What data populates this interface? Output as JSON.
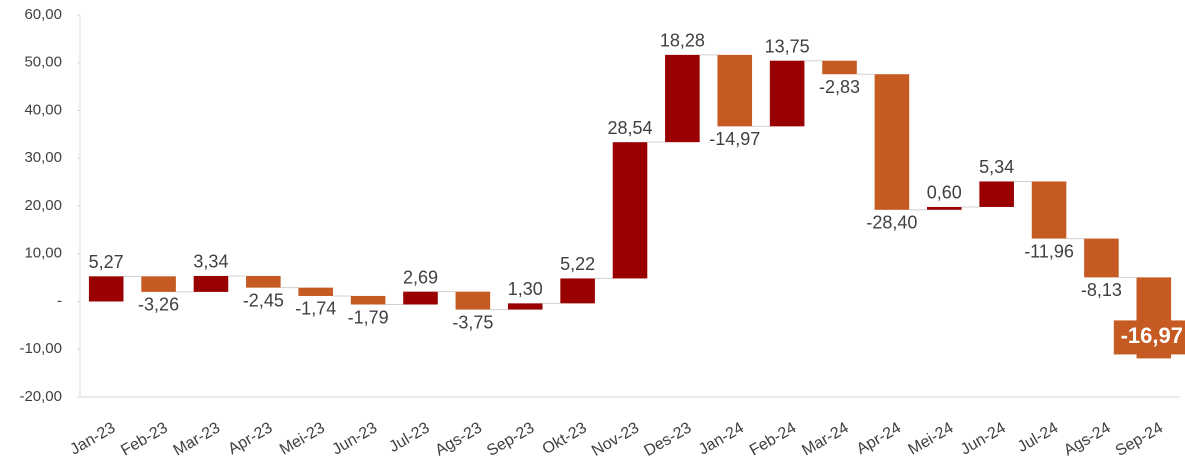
{
  "chart_data": {
    "type": "waterfall",
    "categories": [
      "Jan-23",
      "Feb-23",
      "Mar-23",
      "Apr-23",
      "Mei-23",
      "Jun-23",
      "Jul-23",
      "Ags-23",
      "Sep-23",
      "Okt-23",
      "Nov-23",
      "Des-23",
      "Jan-24",
      "Feb-24",
      "Mar-24",
      "Apr-24",
      "Mei-24",
      "Jun-24",
      "Jul-24",
      "Ags-24",
      "Sep-24"
    ],
    "values": [
      5.27,
      -3.26,
      3.34,
      -2.45,
      -1.74,
      -1.79,
      2.69,
      -3.75,
      1.3,
      5.22,
      28.54,
      18.28,
      -14.97,
      13.75,
      -2.83,
      -28.4,
      0.6,
      5.34,
      -11.96,
      -8.13,
      -16.97
    ],
    "value_labels": [
      "5,27",
      "-3,26",
      "3,34",
      "-2,45",
      "-1,74",
      "-1,79",
      "2,69",
      "-3,75",
      "1,30",
      "5,22",
      "28,54",
      "18,28",
      "-14,97",
      "13,75",
      "-2,83",
      "-28,40",
      "0,60",
      "5,34",
      "-11,96",
      "-8,13",
      "-16,97"
    ],
    "increase_color": "#990000",
    "decrease_color": "#c55a22",
    "ylim": [
      -20,
      60
    ],
    "yticks": [
      {
        "value": -20,
        "label": "-20,00"
      },
      {
        "value": -10,
        "label": "-10,00"
      },
      {
        "value": 0,
        "label": "-"
      },
      {
        "value": 10,
        "label": "10,00"
      },
      {
        "value": 20,
        "label": "20,00"
      },
      {
        "value": 30,
        "label": "30,00"
      },
      {
        "value": 40,
        "label": "40,00"
      },
      {
        "value": 50,
        "label": "50,00"
      },
      {
        "value": 60,
        "label": "60,00"
      }
    ]
  }
}
